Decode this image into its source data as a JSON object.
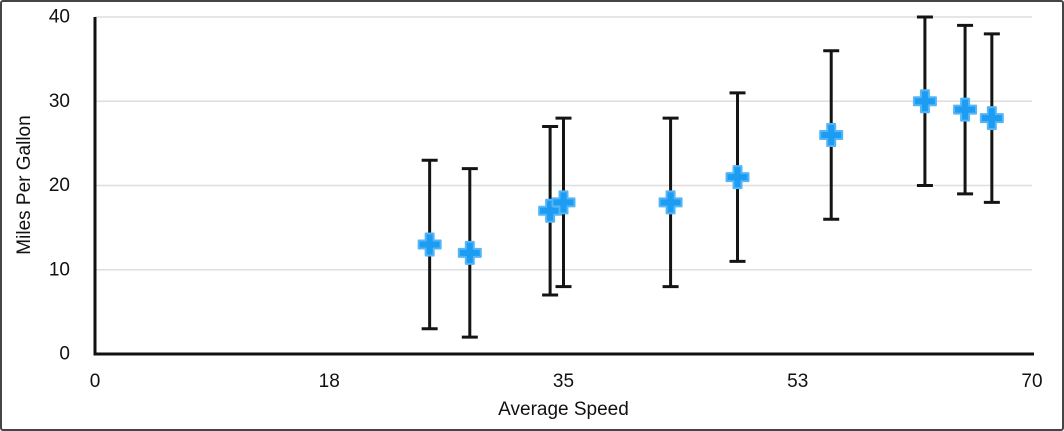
{
  "chart_data": {
    "type": "scatter",
    "title": "",
    "xlabel": "Average Speed",
    "ylabel": "Miles Per Gallon",
    "xlim": [
      0,
      70
    ],
    "ylim": [
      0,
      40
    ],
    "x_ticks": {
      "positions": [
        0,
        17.5,
        35,
        52.5,
        70
      ],
      "labels": [
        "0",
        "18",
        "35",
        "53",
        "70"
      ]
    },
    "y_ticks": {
      "positions": [
        0,
        10,
        20,
        30,
        40
      ],
      "labels": [
        "0",
        "10",
        "20",
        "30",
        "40"
      ]
    },
    "grid": "horizontal",
    "legend": "none",
    "series": [
      {
        "name": "Miles Per Gallon",
        "marker": "plus",
        "error_bar": "symmetric ±10",
        "points": [
          {
            "x": 25,
            "y": 13,
            "err_low": 3,
            "err_high": 23
          },
          {
            "x": 28,
            "y": 12,
            "err_low": 2,
            "err_high": 22
          },
          {
            "x": 34,
            "y": 17,
            "err_low": 7,
            "err_high": 27
          },
          {
            "x": 35,
            "y": 18,
            "err_low": 8,
            "err_high": 28
          },
          {
            "x": 43,
            "y": 18,
            "err_low": 8,
            "err_high": 28
          },
          {
            "x": 48,
            "y": 21,
            "err_low": 11,
            "err_high": 31
          },
          {
            "x": 55,
            "y": 26,
            "err_low": 16,
            "err_high": 36
          },
          {
            "x": 62,
            "y": 30,
            "err_low": 20,
            "err_high": 40
          },
          {
            "x": 65,
            "y": 29,
            "err_low": 19,
            "err_high": 39
          },
          {
            "x": 67,
            "y": 28,
            "err_low": 18,
            "err_high": 38
          }
        ]
      }
    ],
    "colors": {
      "marker": "#1C9DF3",
      "marker_edge": "#55B6F7",
      "error_bar": "#141414",
      "axis": "#111111",
      "grid": "#dedede",
      "text": "#111111",
      "background": "#ffffff",
      "frame_border": "#454545"
    }
  }
}
